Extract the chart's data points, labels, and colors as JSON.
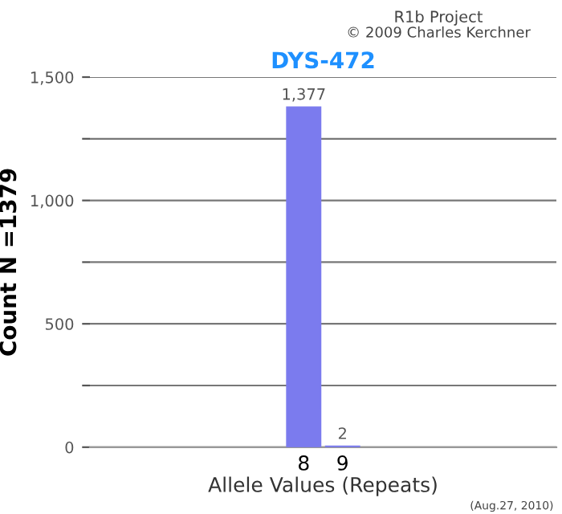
{
  "chart_data": {
    "type": "bar",
    "title": "DYS-472",
    "xlabel": "Allele Values (Repeats)",
    "ylabel": "Count N =1379",
    "annotations": [
      "R1b Project",
      "© 2009 Charles Kerchner",
      "(Aug.27, 2010)"
    ],
    "categories": [
      "8",
      "9"
    ],
    "values": [
      1377,
      2
    ],
    "value_labels": [
      "1,377",
      "2"
    ],
    "color": "#7b7bee",
    "ylim": [
      0,
      1500
    ],
    "yticks": [
      0,
      {
        "value": 250,
        "label": null
      },
      500,
      {
        "value": 750,
        "label": null
      },
      {
        "value": 1000,
        "label": "1,000"
      },
      {
        "value": 1250,
        "label": null
      },
      {
        "value": 1500,
        "label": "1,500"
      }
    ],
    "grid": "y"
  }
}
